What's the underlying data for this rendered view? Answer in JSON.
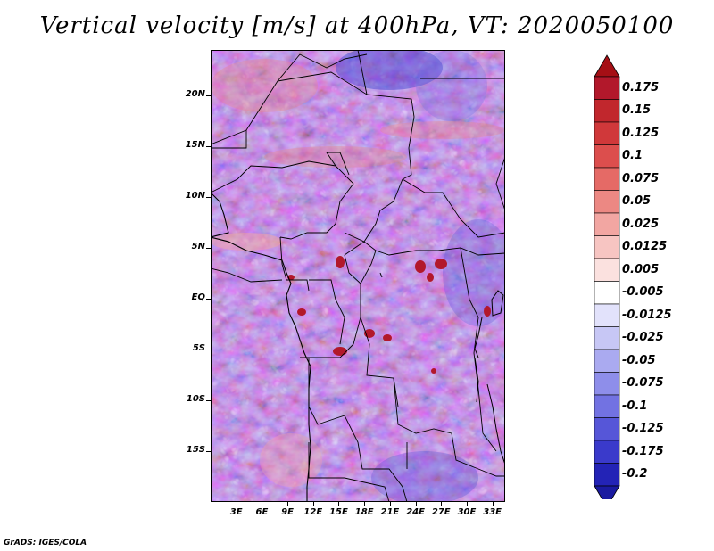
{
  "title": "Vertical velocity [m/s] at 400hPa, VT: 2020050100",
  "footer": "GrADS: IGES/COLA",
  "map": {
    "lat_range": [
      -20,
      24.5
    ],
    "lon_range": [
      0,
      34.5
    ],
    "lat_ticks": [
      {
        "value": 20,
        "label": "20N"
      },
      {
        "value": 15,
        "label": "15N"
      },
      {
        "value": 10,
        "label": "10N"
      },
      {
        "value": 5,
        "label": "5N"
      },
      {
        "value": 0,
        "label": "EQ"
      },
      {
        "value": -5,
        "label": "5S"
      },
      {
        "value": -10,
        "label": "10S"
      },
      {
        "value": -15,
        "label": "15S"
      }
    ],
    "lon_ticks": [
      {
        "value": 3,
        "label": "3E"
      },
      {
        "value": 6,
        "label": "6E"
      },
      {
        "value": 9,
        "label": "9E"
      },
      {
        "value": 12,
        "label": "12E"
      },
      {
        "value": 15,
        "label": "15E"
      },
      {
        "value": 18,
        "label": "18E"
      },
      {
        "value": 21,
        "label": "21E"
      },
      {
        "value": 24,
        "label": "24E"
      },
      {
        "value": 27,
        "label": "27E"
      },
      {
        "value": 30,
        "label": "30E"
      },
      {
        "value": 33,
        "label": "33E"
      }
    ]
  },
  "colorbar": {
    "levels": [
      {
        "label": "0.175",
        "color": "#b2182b"
      },
      {
        "label": "0.15",
        "color": "#c1272d"
      },
      {
        "label": "0.125",
        "color": "#d0383a"
      },
      {
        "label": "0.1",
        "color": "#dc4e4d"
      },
      {
        "label": "0.075",
        "color": "#e56a66"
      },
      {
        "label": "0.05",
        "color": "#ec8883"
      },
      {
        "label": "0.025",
        "color": "#f2a6a2"
      },
      {
        "label": "0.0125",
        "color": "#f7c5c2"
      },
      {
        "label": "0.005",
        "color": "#fbe1df"
      },
      {
        "label": "-0.005",
        "color": "#ffffff"
      },
      {
        "label": "-0.0125",
        "color": "#e2e2fb"
      },
      {
        "label": "-0.025",
        "color": "#c7c7f5"
      },
      {
        "label": "-0.05",
        "color": "#aaaaf0"
      },
      {
        "label": "-0.075",
        "color": "#8e8eea"
      },
      {
        "label": "-0.1",
        "color": "#7272e2"
      },
      {
        "label": "-0.125",
        "color": "#5656d8"
      },
      {
        "label": "-0.175",
        "color": "#3a3acb"
      },
      {
        "label": "-0.2",
        "color": "#2323b6"
      }
    ],
    "top_color": "#a50f15",
    "bottom_color": "#1a1aa0"
  }
}
